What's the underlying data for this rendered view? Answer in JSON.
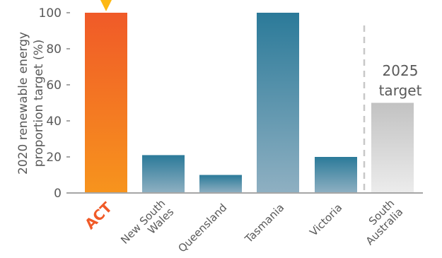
{
  "chart_data": {
    "type": "bar",
    "ylabel": "2020 renewable energy proportion target (%)",
    "ylabel_lines": [
      "2020 renewable energy",
      "proportion target (%)"
    ],
    "ylim": [
      0,
      100
    ],
    "yticks": [
      "0",
      "20",
      "40",
      "60",
      "80",
      "100"
    ],
    "categories": [
      {
        "name": "ACT",
        "lines": [
          "ACT"
        ],
        "value": 100,
        "highlight": true
      },
      {
        "name": "New South Wales",
        "lines": [
          "New South",
          "Wales"
        ],
        "value": 21
      },
      {
        "name": "Queensland",
        "lines": [
          "Queensland"
        ],
        "value": 10
      },
      {
        "name": "Tasmania",
        "lines": [
          "Tasmania"
        ],
        "value": 100
      },
      {
        "name": "Victoria",
        "lines": [
          "Victoria"
        ],
        "value": 20
      },
      {
        "name": "South Australia",
        "lines": [
          "South",
          "Australia"
        ],
        "value": 50,
        "group": "2025 target"
      }
    ],
    "annotation": {
      "lines": [
        "2025",
        "target"
      ]
    },
    "colors": {
      "highlight_top": "#f05a28",
      "highlight_bottom": "#f7941d",
      "teal_top": "#2b7a99",
      "teal_bottom": "#8fb0c2",
      "grey_top": "#c2c2c2",
      "grey_bottom": "#ececec",
      "axis": "#a6a6a6",
      "text": "#595959",
      "marker": "#fdb813"
    }
  }
}
